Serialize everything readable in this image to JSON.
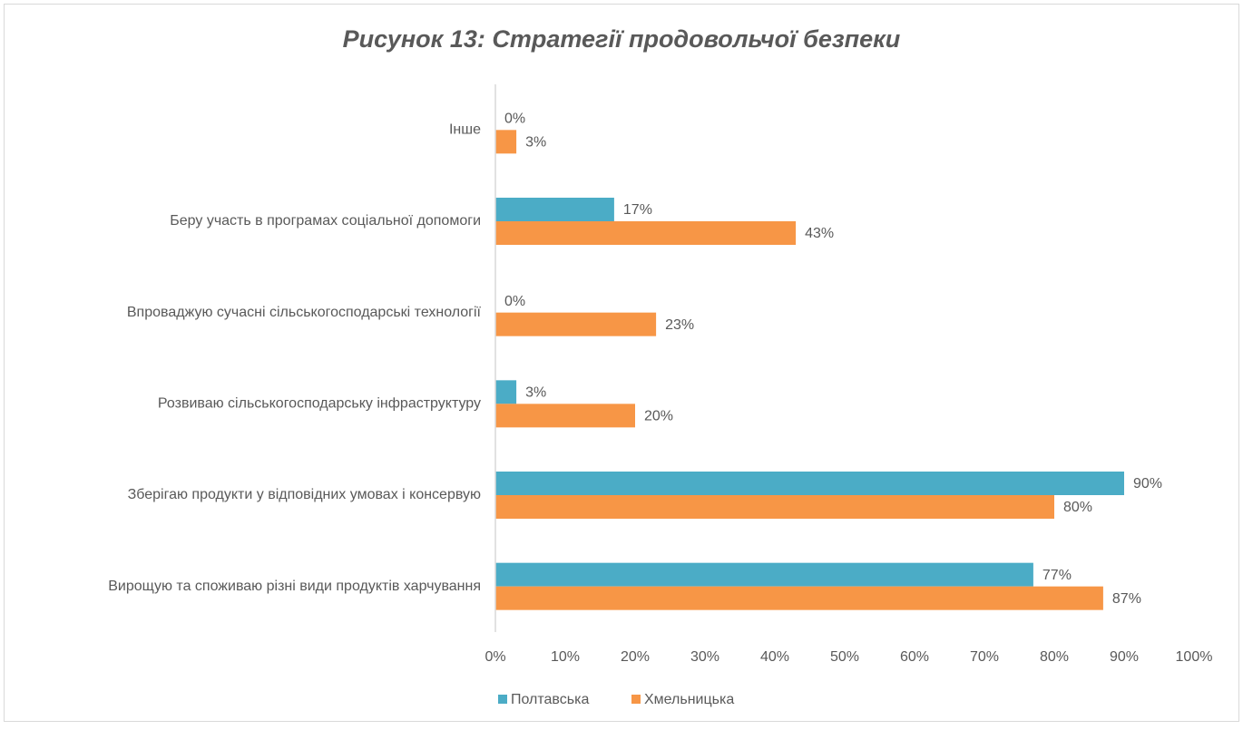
{
  "chart_data": {
    "type": "bar",
    "orientation": "horizontal",
    "title": "Рисунок 13: Стратегії продовольчої безпеки",
    "categories": [
      "Інше",
      "Беру участь в програмах соціальної допомоги",
      "Впроваджую сучасні сільськогосподарські технології",
      "Розвиваю сільськогосподарську інфраструктуру",
      "Зберігаю продукти у відповідних умовах і консервую",
      "Вирощую та споживаю різні види продуктів харчування"
    ],
    "series": [
      {
        "name": "Полтавська",
        "color": "#4bacc6",
        "values": [
          0,
          17,
          0,
          3,
          90,
          77
        ],
        "value_labels": [
          "0%",
          "17%",
          "0%",
          "3%",
          "90%",
          "77%"
        ]
      },
      {
        "name": "Хмельницька",
        "color": "#f79646",
        "values": [
          3,
          43,
          23,
          20,
          80,
          87
        ],
        "value_labels": [
          "3%",
          "43%",
          "23%",
          "20%",
          "80%",
          "87%"
        ]
      }
    ],
    "xlim": [
      0,
      100
    ],
    "xticks": [
      {
        "value": 0,
        "label": "0%"
      },
      {
        "value": 10,
        "label": "10%"
      },
      {
        "value": 20,
        "label": "20%"
      },
      {
        "value": 30,
        "label": "30%"
      },
      {
        "value": 40,
        "label": "40%"
      },
      {
        "value": 50,
        "label": "50%"
      },
      {
        "value": 60,
        "label": "60%"
      },
      {
        "value": 70,
        "label": "70%"
      },
      {
        "value": 80,
        "label": "80%"
      },
      {
        "value": 90,
        "label": "90%"
      },
      {
        "value": 100,
        "label": "100%"
      }
    ],
    "grid": false
  }
}
